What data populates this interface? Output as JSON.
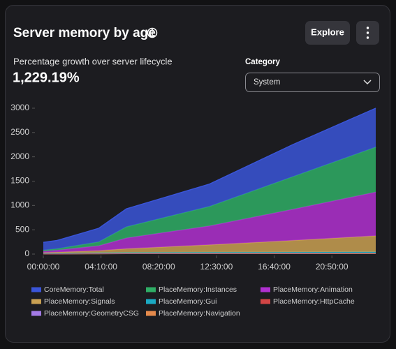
{
  "header": {
    "title": "Server memory by age",
    "explore_button": "Explore"
  },
  "summary": {
    "label": "Percentage growth over server lifecycle",
    "value": "1,229.19%"
  },
  "category": {
    "label": "Category",
    "selected": "System"
  },
  "chart_data": {
    "type": "stacked_area",
    "x": [
      0,
      60,
      240,
      360,
      720,
      1080,
      1440
    ],
    "xlim": [
      0,
      1440
    ],
    "xticks": [
      {
        "value": 0,
        "label": "00:00:00"
      },
      {
        "value": 250,
        "label": "04:10:00"
      },
      {
        "value": 500,
        "label": "08:20:00"
      },
      {
        "value": 750,
        "label": "12:30:00"
      },
      {
        "value": 1000,
        "label": "16:40:00"
      },
      {
        "value": 1250,
        "label": "20:50:00"
      }
    ],
    "ylim": [
      0,
      3000
    ],
    "yticks": [
      0,
      500,
      1000,
      1500,
      2000,
      2500,
      3000
    ],
    "series": [
      {
        "name": "CoreMemory:Total",
        "color": "#3a55d8",
        "values": [
          160,
          170,
          280,
          370,
          460,
          660,
          800
        ]
      },
      {
        "name": "PlaceMemory:Instances",
        "color": "#2fae66",
        "values": [
          20,
          30,
          80,
          230,
          400,
          670,
          925
        ]
      },
      {
        "name": "PlaceMemory:Animation",
        "color": "#b030d0",
        "values": [
          30,
          40,
          100,
          220,
          390,
          640,
          900
        ]
      },
      {
        "name": "PlaceMemory:Signals",
        "color": "#c9a052",
        "values": [
          12,
          22,
          42,
          77,
          153,
          239,
          330
        ]
      },
      {
        "name": "PlaceMemory:Gui",
        "color": "#1ba9c2",
        "values": [
          10,
          10,
          15,
          18,
          20,
          22,
          25
        ]
      },
      {
        "name": "PlaceMemory:HttpCache",
        "color": "#d24545",
        "values": [
          1,
          1,
          2,
          2,
          2,
          2,
          2
        ]
      },
      {
        "name": "PlaceMemory:GeometryCSG",
        "color": "#a37ae6",
        "values": [
          2,
          2,
          3,
          3,
          3,
          3,
          3
        ]
      },
      {
        "name": "PlaceMemory:Navigation",
        "color": "#e58a4c",
        "values": [
          5,
          5,
          8,
          10,
          12,
          14,
          15
        ]
      }
    ]
  }
}
